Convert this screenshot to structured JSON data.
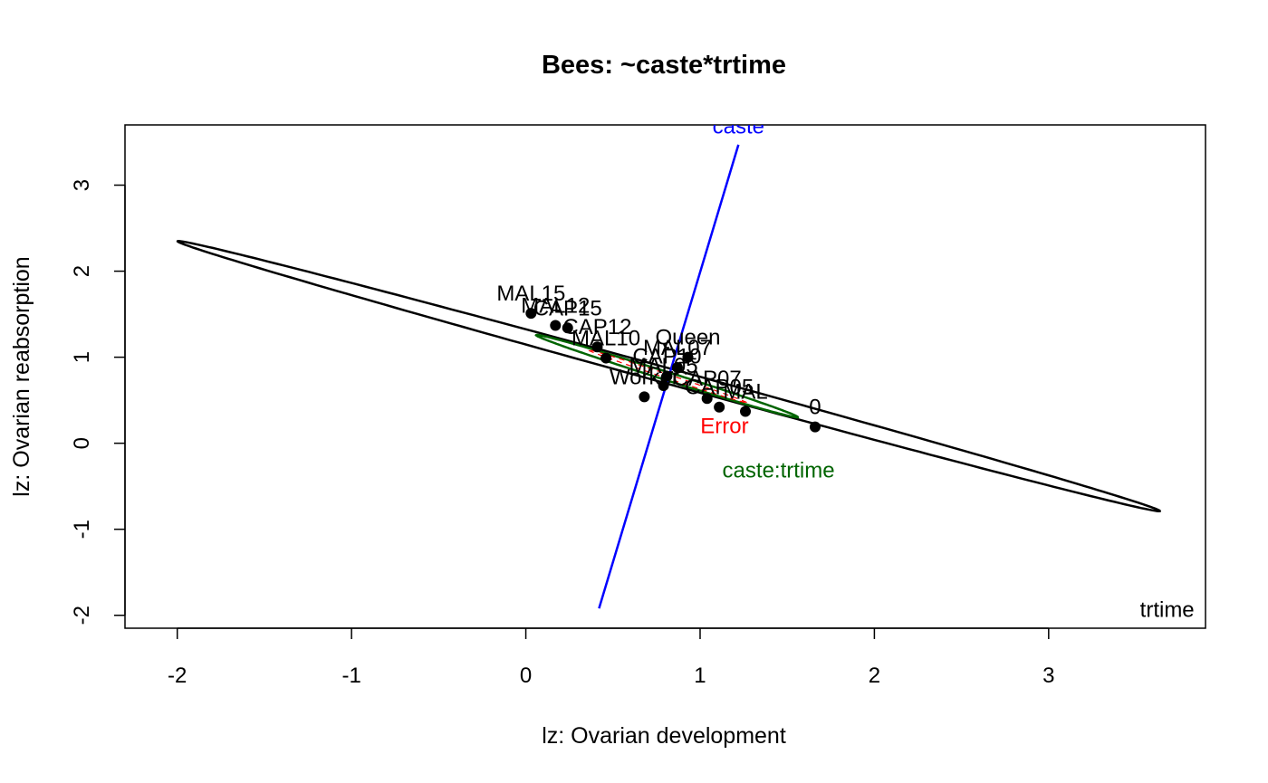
{
  "chart_data": {
    "type": "scatter",
    "title": "Bees: ~caste*trtime",
    "xlabel": "lz: Ovarian development",
    "ylabel": "lz: Ovarian reabsorption",
    "xlim": [
      -2.3,
      3.9
    ],
    "ylim": [
      -2.15,
      3.7
    ],
    "x_ticks": [
      -2,
      -1,
      0,
      1,
      2,
      3
    ],
    "y_ticks": [
      -2,
      -1,
      0,
      1,
      2,
      3
    ],
    "grid": false,
    "colors": {
      "axes": "#000000",
      "points": "#000000",
      "trtime": "#000000",
      "caste": "#0000ff",
      "interaction": "#006400",
      "error": "#ff0000"
    },
    "points": [
      {
        "label": "MAL15",
        "x": 0.03,
        "y": 1.51
      },
      {
        "label": "MAL12",
        "x": 0.17,
        "y": 1.37
      },
      {
        "label": "CAP15",
        "x": 0.24,
        "y": 1.34
      },
      {
        "label": "CAP12",
        "x": 0.41,
        "y": 1.12
      },
      {
        "label": "MAL10",
        "x": 0.46,
        "y": 0.99
      },
      {
        "label": "Queen",
        "x": 0.93,
        "y": 1.0
      },
      {
        "label": "MAL07",
        "x": 0.87,
        "y": 0.88
      },
      {
        "label": "CAP10",
        "x": 0.81,
        "y": 0.78
      },
      {
        "label": "Worker",
        "x": 0.68,
        "y": 0.54
      },
      {
        "label": "MAL05",
        "x": 0.79,
        "y": 0.67
      },
      {
        "label": "CAP07",
        "x": 1.04,
        "y": 0.52
      },
      {
        "label": "CAP05",
        "x": 1.11,
        "y": 0.42
      },
      {
        "label": "MAL",
        "x": 1.26,
        "y": 0.37
      },
      {
        "label": "0",
        "x": 1.66,
        "y": 0.19
      }
    ],
    "ellipses": [
      {
        "name": "trtime",
        "center": [
          0.82,
          0.78
        ],
        "a": 3.225,
        "angle_deg": -29.1,
        "b": 0.081
      },
      {
        "name": "caste:trtime",
        "center": [
          0.81,
          0.78
        ],
        "a": 0.89,
        "angle_deg": -32.5,
        "b": 0.042
      },
      {
        "name": "Error",
        "center": [
          0.81,
          0.78
        ],
        "a": 0.55,
        "angle_deg": -34.0,
        "b": 0.02
      }
    ],
    "caste_line": {
      "name": "caste",
      "from": [
        0.42,
        -1.92
      ],
      "to": [
        1.22,
        3.47
      ]
    },
    "effect_labels": [
      {
        "text": "trtime",
        "x": 3.68,
        "y": -2.02,
        "anchor": "middle",
        "color": "trtime"
      },
      {
        "text": "caste",
        "x": 1.22,
        "y": 3.6,
        "anchor": "middle",
        "color": "caste"
      },
      {
        "text": "caste:trtime",
        "x": 1.45,
        "y": -0.4,
        "anchor": "middle",
        "color": "interaction"
      },
      {
        "text": "Error",
        "x": 1.14,
        "y": 0.12,
        "anchor": "middle",
        "color": "error"
      }
    ]
  }
}
